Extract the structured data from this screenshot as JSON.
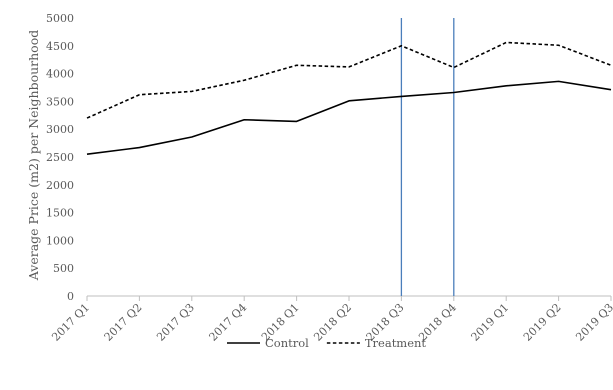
{
  "chart_data": {
    "type": "line",
    "title": "",
    "xlabel": "",
    "ylabel": "Average Price (m2) per Neighbourhood",
    "categories": [
      "2017 Q1",
      "2017 Q2",
      "2017 Q3",
      "2017 Q4",
      "2018 Q1",
      "2018 Q2",
      "2018 Q3",
      "2018 Q4",
      "2019 Q1",
      "2019 Q2",
      "2019 Q3"
    ],
    "ylim": [
      0,
      5000
    ],
    "yticks": [
      0,
      500,
      1000,
      1500,
      2000,
      2500,
      3000,
      3500,
      4000,
      4500,
      5000
    ],
    "grid": false,
    "legend_position": "bottom",
    "series": [
      {
        "name": "Control",
        "style": "solid",
        "color": "#000000",
        "values": [
          2550,
          2670,
          2860,
          3170,
          3140,
          3510,
          3590,
          3660,
          3780,
          3860,
          3710
        ]
      },
      {
        "name": "Treatment",
        "style": "dashed",
        "color": "#000000",
        "values": [
          3200,
          3620,
          3680,
          3880,
          4150,
          4120,
          4500,
          4110,
          4560,
          4510,
          4150
        ]
      }
    ],
    "reference_lines": [
      {
        "x": "2018 Q3",
        "color": "#4a7ebb"
      },
      {
        "x": "2018 Q4",
        "color": "#4a7ebb"
      }
    ]
  }
}
